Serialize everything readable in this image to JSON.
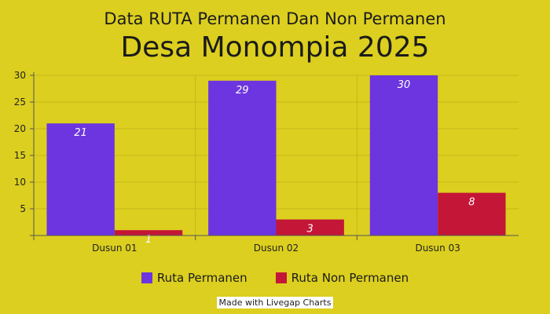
{
  "chart_data": {
    "type": "bar",
    "title": "Data RUTA Permanen Dan Non Permanen",
    "subtitle": "Desa Monompia 2025",
    "categories": [
      "Dusun 01",
      "Dusun 02",
      "Dusun 03"
    ],
    "series": [
      {
        "name": "Ruta Permanen",
        "values": [
          21,
          29,
          30
        ],
        "color": "#6c35df"
      },
      {
        "name": "Ruta Non Permanen",
        "values": [
          1,
          3,
          8
        ],
        "color": "#c41636"
      }
    ],
    "yticks": [
      5,
      10,
      15,
      20,
      25,
      30
    ],
    "ylim": [
      0,
      30
    ],
    "grid": true,
    "legend_position": "bottom"
  },
  "credit": "Made with Livegap Charts"
}
